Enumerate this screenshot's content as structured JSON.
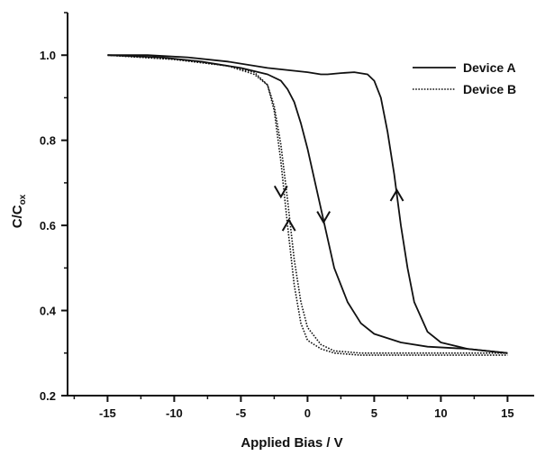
{
  "chart_data": {
    "type": "line",
    "title": "",
    "xlabel": "Applied Bias / V",
    "ylabel": "C/C",
    "ylabel_subscript": "ox",
    "xlim": [
      -18,
      17
    ],
    "ylim": [
      0.2,
      1.1
    ],
    "xticks": [
      -15,
      -10,
      -5,
      0,
      5,
      10,
      15
    ],
    "yticks": [
      0.2,
      0.4,
      0.6,
      0.8,
      1.0
    ],
    "xtick_labels": [
      "-15",
      "-10",
      "-5",
      "0",
      "5",
      "10",
      "15"
    ],
    "ytick_labels": [
      "0.2",
      "0.4",
      "0.6",
      "0.8",
      "1.0"
    ],
    "grid": false,
    "legend_position": "top-right",
    "series": [
      {
        "name": "Device A",
        "style": "solid",
        "color": "#111111",
        "segments": [
          {
            "direction": "forward",
            "x": [
              -15,
              -12,
              -9,
              -6,
              -3,
              0,
              1,
              1.5,
              2.5,
              3.5,
              4.5,
              5,
              5.5,
              6,
              6.5,
              7,
              7.5,
              8,
              9,
              10,
              12,
              15
            ],
            "y": [
              1.0,
              1.0,
              0.995,
              0.985,
              0.97,
              0.96,
              0.955,
              0.955,
              0.958,
              0.96,
              0.955,
              0.94,
              0.9,
              0.82,
              0.72,
              0.6,
              0.5,
              0.42,
              0.35,
              0.325,
              0.31,
              0.3
            ]
          },
          {
            "direction": "reverse",
            "x": [
              15,
              12,
              9,
              7,
              5,
              4,
              3,
              2,
              1.5,
              1,
              0.5,
              0,
              -0.5,
              -1,
              -1.5,
              -2,
              -3,
              -5,
              -8,
              -11,
              -15
            ],
            "y": [
              0.3,
              0.31,
              0.315,
              0.325,
              0.345,
              0.37,
              0.42,
              0.5,
              0.57,
              0.64,
              0.71,
              0.78,
              0.84,
              0.89,
              0.92,
              0.94,
              0.955,
              0.97,
              0.985,
              0.995,
              1.0
            ]
          }
        ],
        "arrows": [
          {
            "x": 6.7,
            "y": 0.67,
            "direction": "up"
          },
          {
            "x": 1.2,
            "y": 0.62,
            "direction": "down"
          }
        ]
      },
      {
        "name": "Device B",
        "style": "dotted",
        "color": "#111111",
        "segments": [
          {
            "direction": "forward",
            "x": [
              -15,
              -10,
              -6,
              -4,
              -3,
              -2.5,
              -2,
              -1.5,
              -1,
              -0.5,
              0,
              1,
              2,
              4,
              8,
              15
            ],
            "y": [
              1.0,
              0.99,
              0.975,
              0.96,
              0.93,
              0.87,
              0.75,
              0.6,
              0.46,
              0.37,
              0.33,
              0.31,
              0.3,
              0.295,
              0.295,
              0.295
            ]
          },
          {
            "direction": "reverse",
            "x": [
              15,
              8,
              4,
              2,
              1,
              0,
              -0.5,
              -1,
              -1.5,
              -2,
              -2.5,
              -3,
              -4,
              -6,
              -10,
              -15
            ],
            "y": [
              0.3,
              0.3,
              0.3,
              0.305,
              0.32,
              0.36,
              0.42,
              0.52,
              0.66,
              0.79,
              0.88,
              0.93,
              0.955,
              0.975,
              0.99,
              1.0
            ]
          }
        ],
        "arrows": [
          {
            "x": -2.0,
            "y": 0.68,
            "direction": "down"
          },
          {
            "x": -1.4,
            "y": 0.6,
            "direction": "up"
          }
        ]
      }
    ]
  }
}
